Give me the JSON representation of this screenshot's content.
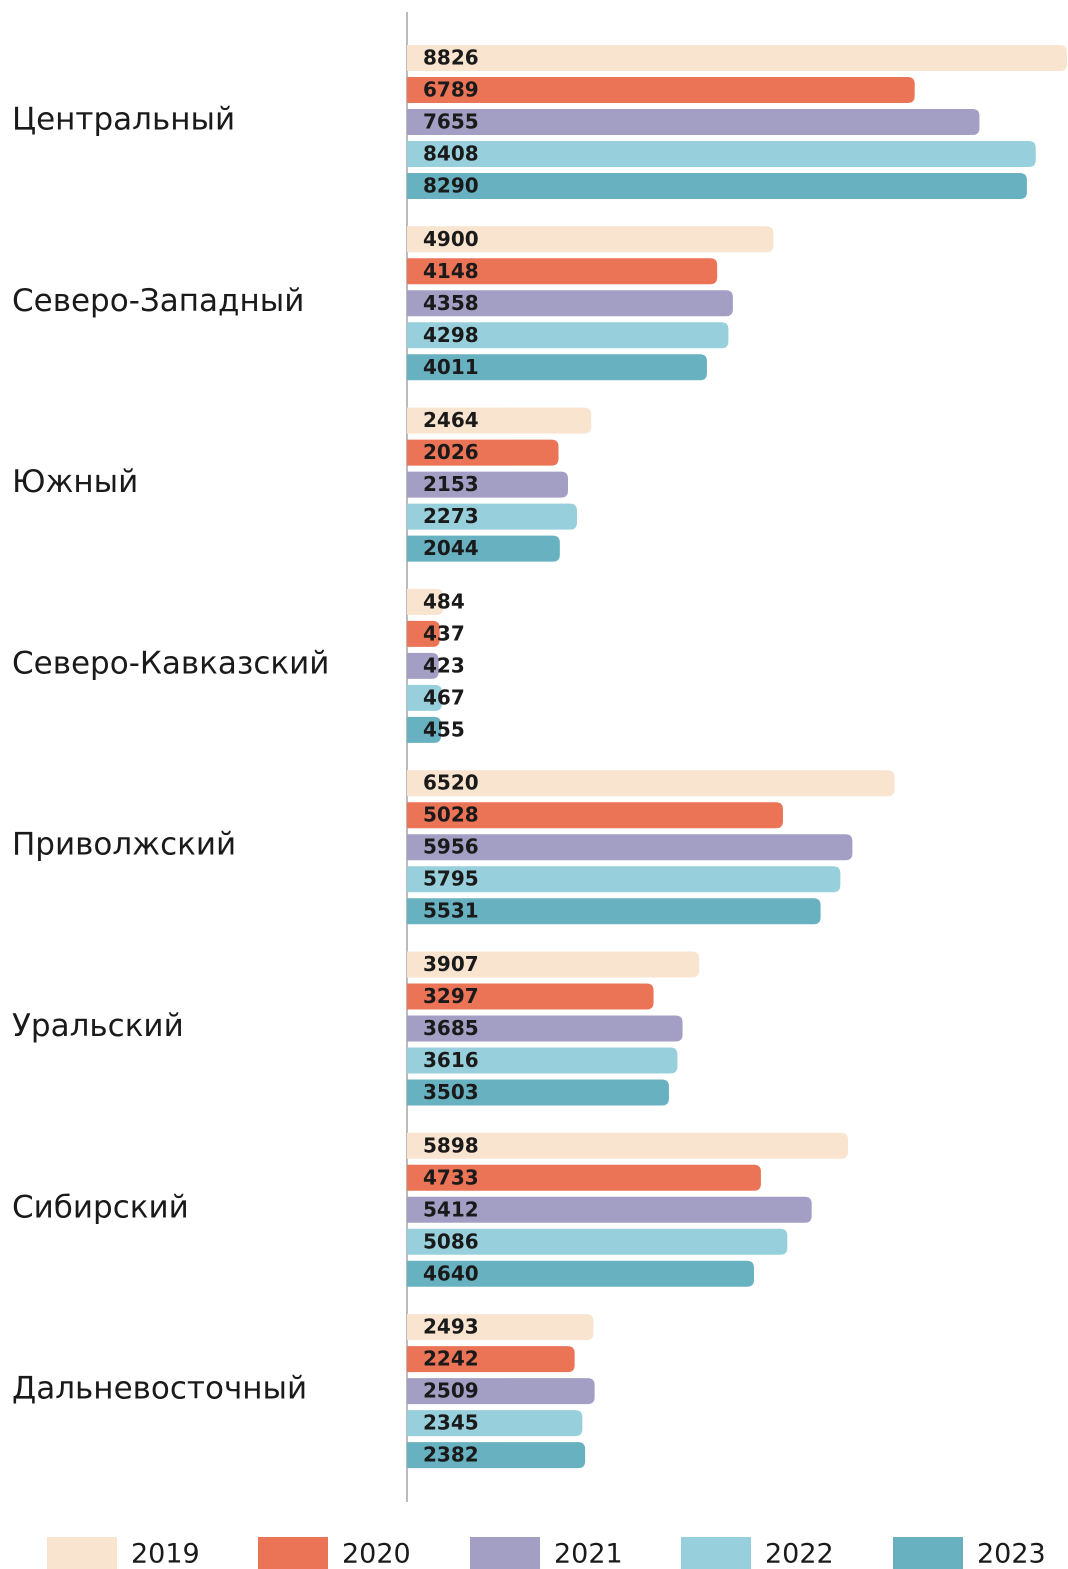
{
  "chart_data": {
    "type": "bar",
    "orientation": "horizontal",
    "categories": [
      "Центральный",
      "Северо-Западный",
      "Южный",
      "Северо-Кавказский",
      "Приволжский",
      "Уральский",
      "Сибирский",
      "Дальневосточный"
    ],
    "series": [
      {
        "name": "2019",
        "color": "#f9e4d0",
        "values": [
          8826,
          4900,
          2464,
          484,
          6520,
          3907,
          5898,
          2493
        ]
      },
      {
        "name": "2020",
        "color": "#ec7456",
        "values": [
          6789,
          4148,
          2026,
          437,
          5028,
          3297,
          4733,
          2242
        ]
      },
      {
        "name": "2021",
        "color": "#a39fc4",
        "values": [
          7655,
          4358,
          2153,
          423,
          5956,
          3685,
          5412,
          2509
        ]
      },
      {
        "name": "2022",
        "color": "#97d0dc",
        "values": [
          8408,
          4298,
          2273,
          467,
          5795,
          3616,
          5086,
          2345
        ]
      },
      {
        "name": "2023",
        "color": "#68b1c0",
        "values": [
          8290,
          4011,
          2044,
          455,
          5531,
          3503,
          4640,
          2382
        ]
      }
    ],
    "legend": "bottom"
  }
}
